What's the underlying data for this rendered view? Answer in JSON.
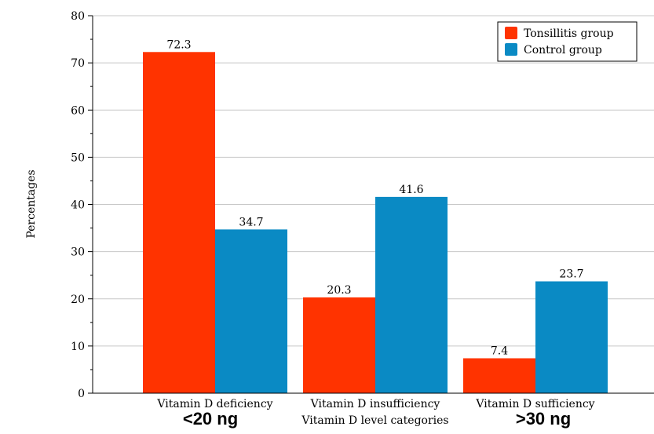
{
  "chart_data": {
    "type": "bar",
    "title": "",
    "xlabel": "Vitamin D level categories",
    "ylabel": "Percentages",
    "ylim": [
      0,
      80
    ],
    "yticks": [
      0,
      10,
      20,
      30,
      40,
      50,
      60,
      70,
      80
    ],
    "grid": true,
    "legend_position": "top-right",
    "categories": [
      "Vitamin D deficiency",
      "Vitamin D insufficiency",
      "Vitamin D sufficiency"
    ],
    "series": [
      {
        "name": "Tonsillitis group",
        "color": "#ff3300",
        "values": [
          72.3,
          20.3,
          7.4
        ]
      },
      {
        "name": "Control group",
        "color": "#0a8ac4",
        "values": [
          34.7,
          41.6,
          23.7
        ]
      }
    ],
    "annotations": {
      "deficiency_threshold": "<20 ng",
      "sufficiency_threshold": ">30 ng"
    }
  }
}
